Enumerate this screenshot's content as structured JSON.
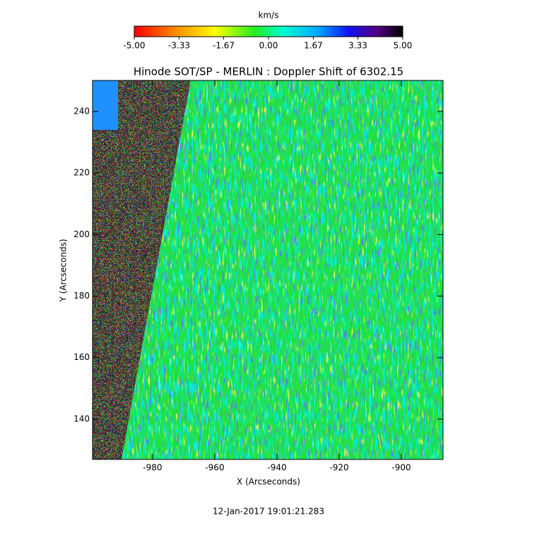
{
  "chart_data": {
    "type": "heatmap",
    "title": "Hinode SOT/SP - MERLIN : Doppler Shift of 6302.15",
    "x_label": "X (Arcseconds)",
    "y_label": "Y (Arcseconds)",
    "xlim": [
      -999.3,
      -886.6
    ],
    "xticks": [
      -980,
      -960,
      -940,
      -920,
      -900
    ],
    "ylim": [
      126.9,
      250.1
    ],
    "yticks": [
      140,
      160,
      180,
      200,
      220,
      240
    ],
    "colorbar": {
      "label": "km/s",
      "lim": [
        -5,
        5
      ],
      "ticks": [
        {
          "value": -5,
          "label": "-5.00"
        },
        -3.33,
        -1.67,
        {
          "value": 0,
          "label": "0.00"
        },
        1.67,
        3.33,
        {
          "value": 5,
          "label": "5.00"
        }
      ]
    },
    "footer": "12-Jan-2017 19:01:21.283"
  }
}
